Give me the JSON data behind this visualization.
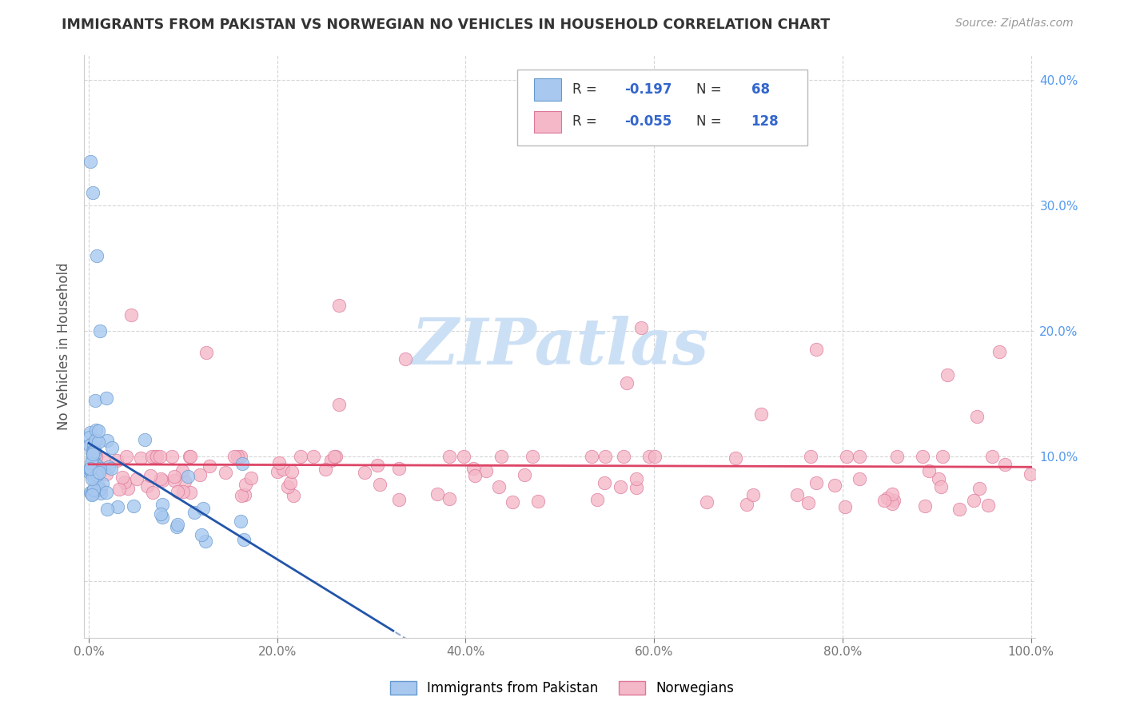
{
  "title": "IMMIGRANTS FROM PAKISTAN VS NORWEGIAN NO VEHICLES IN HOUSEHOLD CORRELATION CHART",
  "source": "Source: ZipAtlas.com",
  "ylabel": "No Vehicles in Household",
  "R1": -0.197,
  "N1": 68,
  "R2": -0.055,
  "N2": 128,
  "color1": "#a8c8f0",
  "color2": "#f4b8c8",
  "color1_edge": "#6699cc",
  "color2_edge": "#dd7799",
  "line1_color": "#2255aa",
  "line2_color": "#dd4466",
  "legend1_label": "Immigrants from Pakistan",
  "legend2_label": "Norwegians",
  "background_color": "#ffffff",
  "grid_color": "#cccccc",
  "ytick_color": "#5599ee",
  "xtick_color": "#777777",
  "title_color": "#333333",
  "source_color": "#999999",
  "ylabel_color": "#555555",
  "watermark_color": "#cce0f5",
  "xlim": [
    -0.005,
    1.005
  ],
  "ylim": [
    -0.045,
    0.42
  ],
  "xticks": [
    0.0,
    0.2,
    0.4,
    0.6,
    0.8,
    1.0
  ],
  "yticks": [
    0.0,
    0.1,
    0.2,
    0.3,
    0.4
  ]
}
